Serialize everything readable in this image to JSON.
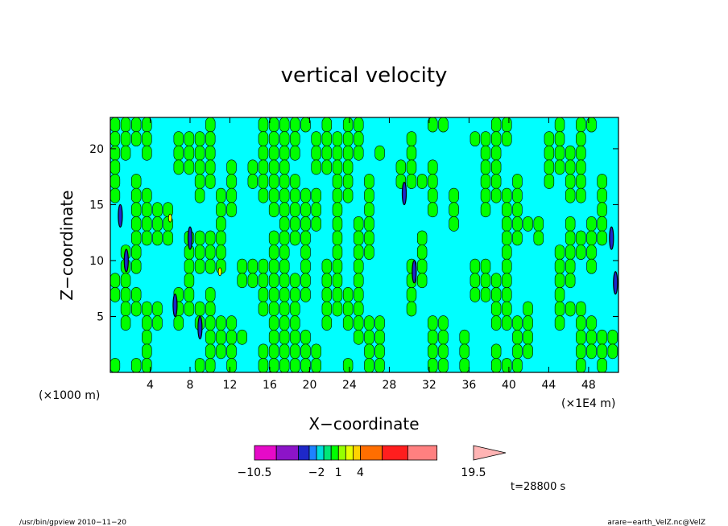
{
  "chart_data": {
    "type": "heatmap",
    "title": "vertical velocity",
    "xlabel": "X−coordinate",
    "ylabel": "Z−coordinate",
    "x_unit_left": "(×1000 m)",
    "x_unit_right": "(×1E4 m)",
    "xlim": [
      0,
      51
    ],
    "ylim": [
      0,
      22.8
    ],
    "x_ticks": [
      4,
      8,
      12,
      16,
      20,
      24,
      28,
      32,
      36,
      40,
      44,
      48
    ],
    "x_tick_labels": [
      "4",
      "8",
      "12",
      "16",
      "20",
      "24",
      "28",
      "32",
      "36",
      "40",
      "44",
      "48"
    ],
    "y_ticks": [
      5,
      10,
      15,
      20
    ],
    "y_tick_labels": [
      "5",
      "10",
      "15",
      "20"
    ],
    "levels": [
      -10.5,
      -7.5,
      -4.5,
      -3,
      -2,
      -1,
      0,
      1,
      2,
      3,
      4,
      7,
      10.5,
      14.5,
      19.5
    ],
    "colorbar_labels": [
      {
        "level": -10.5,
        "text": "−10.5"
      },
      {
        "level": -2,
        "text": "−2"
      },
      {
        "level": 1,
        "text": "1"
      },
      {
        "level": 4,
        "text": "4"
      },
      {
        "level": 19.5,
        "text": "19.5"
      }
    ],
    "colorbar_colors": [
      "#e60ac8",
      "#8c14c8",
      "#1e28c8",
      "#1e82ff",
      "#00dcdc",
      "#00e678",
      "#00ff00",
      "#96ff00",
      "#e6ff00",
      "#ffd200",
      "#ff6e00",
      "#ff1e1e",
      "#ff8080"
    ],
    "colorbar_extend_color": "#ffb4b4",
    "field_colors": {
      "down_weak": "#00ffff",
      "up_weak": "#00ff00",
      "strong_down": "#1e28c8",
      "strong_up": "#ffff00",
      "contour": "#000000"
    },
    "time_label": "t=28800 s"
  },
  "footer": {
    "left": "/usr/bin/gpview   2010−11−20",
    "right": "arare−earth_VelZ.nc@VelZ"
  }
}
